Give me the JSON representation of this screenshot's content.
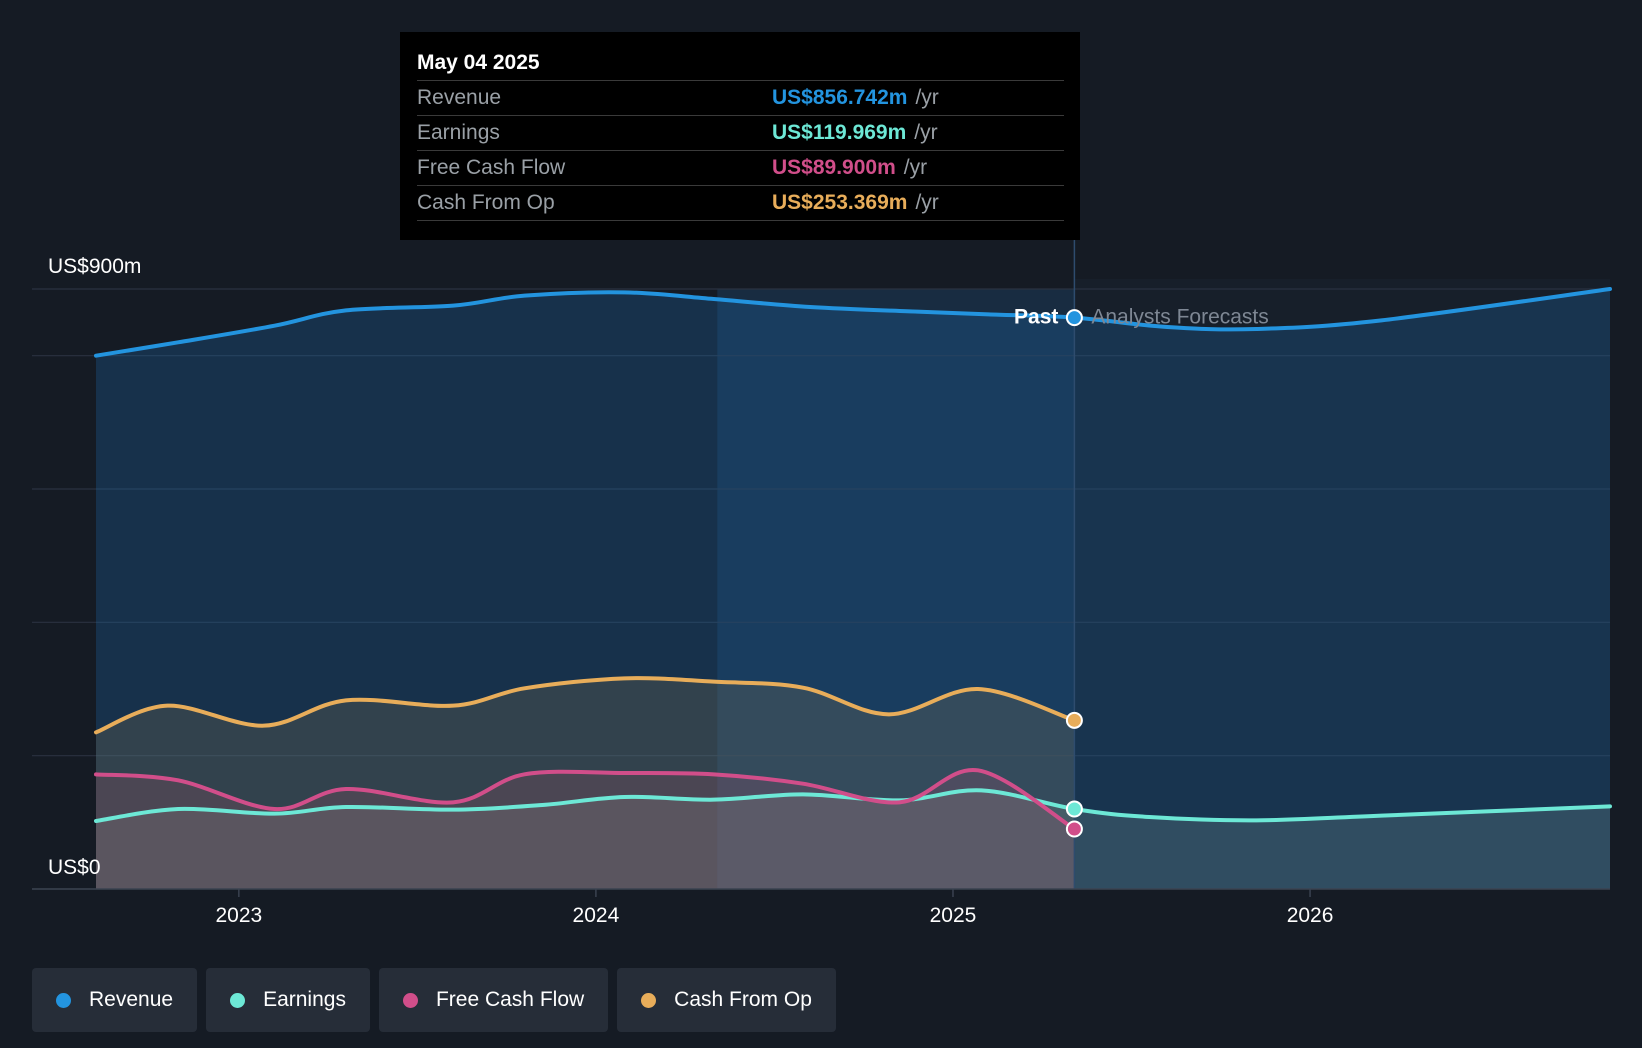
{
  "tooltip": {
    "date": "May 04 2025",
    "rows": [
      {
        "label": "Revenue",
        "value": "US$856.742m",
        "unit": "/yr",
        "color": "#2394df"
      },
      {
        "label": "Earnings",
        "value": "US$119.969m",
        "unit": "/yr",
        "color": "#6de8d6"
      },
      {
        "label": "Free Cash Flow",
        "value": "US$89.900m",
        "unit": "/yr",
        "color": "#d14e8a"
      },
      {
        "label": "Cash From Op",
        "value": "US$253.369m",
        "unit": "/yr",
        "color": "#e8ad5a"
      }
    ]
  },
  "labels": {
    "past": "Past",
    "forecast": "Analysts Forecasts"
  },
  "legend": [
    {
      "label": "Revenue",
      "color": "#2394df"
    },
    {
      "label": "Earnings",
      "color": "#6de8d6"
    },
    {
      "label": "Free Cash Flow",
      "color": "#d14e8a"
    },
    {
      "label": "Cash From Op",
      "color": "#e8ad5a"
    }
  ],
  "chart_data": {
    "type": "line",
    "y_unit": "US$m",
    "ylim": [
      0,
      900
    ],
    "y_tick_labels": [
      {
        "value": 900,
        "label": "US$900m"
      },
      {
        "value": 0,
        "label": "US$0"
      }
    ],
    "gridlines": [
      0,
      200,
      400,
      600,
      800,
      900
    ],
    "xlim": [
      2022.6,
      2026.84
    ],
    "x_ticks": [
      2023,
      2024,
      2025,
      2026
    ],
    "past_end": 2025.34,
    "highlight_start": 2024.34,
    "series": [
      {
        "name": "Revenue",
        "color": "#2394df",
        "points": [
          [
            2022.6,
            800
          ],
          [
            2022.83,
            820
          ],
          [
            2023.1,
            845
          ],
          [
            2023.3,
            868
          ],
          [
            2023.6,
            875
          ],
          [
            2023.8,
            890
          ],
          [
            2024.08,
            895
          ],
          [
            2024.33,
            885
          ],
          [
            2024.6,
            873
          ],
          [
            2024.9,
            866
          ],
          [
            2025.1,
            862
          ],
          [
            2025.34,
            857
          ],
          [
            2025.6,
            843
          ],
          [
            2025.85,
            840
          ],
          [
            2026.2,
            853
          ],
          [
            2026.84,
            900
          ]
        ]
      },
      {
        "name": "Earnings",
        "color": "#6de8d6",
        "points": [
          [
            2022.6,
            102
          ],
          [
            2022.83,
            120
          ],
          [
            2023.1,
            113
          ],
          [
            2023.3,
            123
          ],
          [
            2023.6,
            119
          ],
          [
            2023.85,
            126
          ],
          [
            2024.08,
            138
          ],
          [
            2024.33,
            134
          ],
          [
            2024.58,
            142
          ],
          [
            2024.85,
            133
          ],
          [
            2025.08,
            148
          ],
          [
            2025.34,
            120
          ],
          [
            2025.55,
            108
          ],
          [
            2025.85,
            103
          ],
          [
            2026.2,
            110
          ],
          [
            2026.84,
            124
          ]
        ]
      },
      {
        "name": "Free Cash Flow",
        "color": "#d14e8a",
        "points": [
          [
            2022.6,
            172
          ],
          [
            2022.83,
            163
          ],
          [
            2023.1,
            120
          ],
          [
            2023.3,
            150
          ],
          [
            2023.6,
            130
          ],
          [
            2023.8,
            172
          ],
          [
            2024.08,
            174
          ],
          [
            2024.33,
            172
          ],
          [
            2024.58,
            158
          ],
          [
            2024.85,
            130
          ],
          [
            2025.07,
            178
          ],
          [
            2025.34,
            90
          ]
        ]
      },
      {
        "name": "Cash From Op",
        "color": "#e8ad5a",
        "points": [
          [
            2022.6,
            235
          ],
          [
            2022.8,
            275
          ],
          [
            2023.07,
            245
          ],
          [
            2023.3,
            283
          ],
          [
            2023.6,
            275
          ],
          [
            2023.8,
            301
          ],
          [
            2024.08,
            316
          ],
          [
            2024.33,
            311
          ],
          [
            2024.58,
            302
          ],
          [
            2024.82,
            262
          ],
          [
            2025.07,
            300
          ],
          [
            2025.34,
            253
          ]
        ]
      }
    ]
  }
}
